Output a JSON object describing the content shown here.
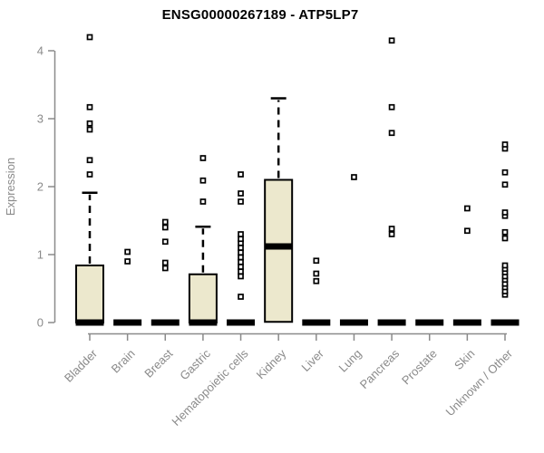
{
  "chart_data": {
    "type": "boxplot",
    "title": "ENSG00000267189 - ATP5LP7",
    "ylabel": "Expression",
    "xlabel": "",
    "ylim": [
      0,
      4
    ],
    "yticks": [
      0,
      1,
      2,
      3,
      4
    ],
    "grid": "off",
    "legend": "none",
    "categories": [
      "Bladder",
      "Brain",
      "Breast",
      "Gastric",
      "Hematopoietic cells",
      "Kidney",
      "Liver",
      "Lung",
      "Pancreas",
      "Prostate",
      "Skin",
      "Unknown / Other"
    ],
    "series": [
      {
        "category": "Bladder",
        "q1": 0,
        "median": 0,
        "q3": 0.84,
        "whisker_low": 0,
        "whisker_high": 1.91,
        "outliers": [
          2.18,
          2.39,
          2.84,
          2.93,
          3.17,
          4.2
        ]
      },
      {
        "category": "Brain",
        "q1": 0,
        "median": 0,
        "q3": 0,
        "whisker_low": 0,
        "whisker_high": 0,
        "outliers": [
          0.9,
          1.04
        ]
      },
      {
        "category": "Breast",
        "q1": 0,
        "median": 0,
        "q3": 0,
        "whisker_low": 0,
        "whisker_high": 0,
        "outliers": [
          0.8,
          0.88,
          1.19,
          1.4,
          1.48
        ]
      },
      {
        "category": "Gastric",
        "q1": 0,
        "median": 0,
        "q3": 0.71,
        "whisker_low": 0,
        "whisker_high": 1.41,
        "outliers": [
          1.78,
          2.09,
          2.42
        ]
      },
      {
        "category": "Hematopoietic cells",
        "q1": 0,
        "median": 0,
        "q3": 0,
        "whisker_low": 0,
        "whisker_high": 0,
        "outliers": [
          0.38,
          0.68,
          0.75,
          0.82,
          0.89,
          0.96,
          1.03,
          1.1,
          1.17,
          1.23,
          1.3,
          1.78,
          1.9,
          2.18
        ]
      },
      {
        "category": "Kidney",
        "q1": 0.01,
        "median": 1.12,
        "q3": 2.1,
        "whisker_low": 0.01,
        "whisker_high": 3.3,
        "outliers": []
      },
      {
        "category": "Liver",
        "q1": 0,
        "median": 0,
        "q3": 0,
        "whisker_low": 0,
        "whisker_high": 0,
        "outliers": [
          0.61,
          0.72,
          0.91
        ]
      },
      {
        "category": "Lung",
        "q1": 0,
        "median": 0,
        "q3": 0,
        "whisker_low": 0,
        "whisker_high": 0,
        "outliers": [
          2.14
        ]
      },
      {
        "category": "Pancreas",
        "q1": 0,
        "median": 0,
        "q3": 0,
        "whisker_low": 0,
        "whisker_high": 0,
        "outliers": [
          1.3,
          1.38,
          2.79,
          3.17,
          4.15
        ]
      },
      {
        "category": "Prostate",
        "q1": 0,
        "median": 0,
        "q3": 0,
        "whisker_low": 0,
        "whisker_high": 0,
        "outliers": []
      },
      {
        "category": "Skin",
        "q1": 0,
        "median": 0,
        "q3": 0,
        "whisker_low": 0,
        "whisker_high": 0,
        "outliers": [
          1.35,
          1.68
        ]
      },
      {
        "category": "Unknown / Other",
        "q1": 0,
        "median": 0,
        "q3": 0,
        "whisker_low": 0,
        "whisker_high": 0,
        "outliers": [
          0.41,
          0.46,
          0.52,
          0.57,
          0.63,
          0.68,
          0.74,
          0.79,
          0.84,
          1.24,
          1.33,
          1.57,
          1.62,
          2.03,
          2.21,
          2.56,
          2.62
        ]
      }
    ],
    "colors": {
      "box_fill": "#ECE8CD",
      "box_stroke": "#000000",
      "median": "#000000",
      "outlier_fill": "#ffffff",
      "axis": "#8a8a8a",
      "tick_text": "#8a8a8a",
      "title_text": "#000000"
    }
  }
}
